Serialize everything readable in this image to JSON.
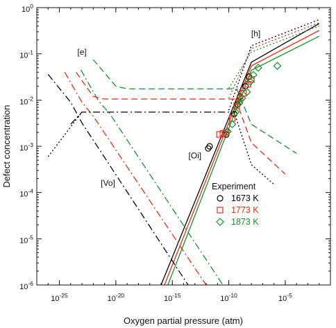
{
  "chart_data": {
    "type": "line",
    "xlabel": "Oxygen partial pressure (atm)",
    "ylabel": "Defect concentration",
    "x_scale": "log",
    "y_scale": "log",
    "xlim": [
      1e-27,
      0.1
    ],
    "ylim": [
      1e-06,
      1
    ],
    "x_ticks": [
      {
        "value": 1e-25,
        "base": "10",
        "exp": "-25"
      },
      {
        "value": 1e-20,
        "base": "10",
        "exp": "-20"
      },
      {
        "value": 1e-15,
        "base": "10",
        "exp": "-15"
      },
      {
        "value": 1e-10,
        "base": "10",
        "exp": "-10"
      },
      {
        "value": 1e-05,
        "base": "10",
        "exp": "-5"
      }
    ],
    "y_ticks": [
      {
        "value": 1e-06,
        "base": "10",
        "exp": "-6"
      },
      {
        "value": 1e-05,
        "base": "10",
        "exp": "-5"
      },
      {
        "value": 0.0001,
        "base": "10",
        "exp": "-4"
      },
      {
        "value": 0.001,
        "base": "10",
        "exp": "-3"
      },
      {
        "value": 0.01,
        "base": "10",
        "exp": "-2"
      },
      {
        "value": 0.1,
        "base": "10",
        "exp": "-1"
      },
      {
        "value": 1,
        "base": "10",
        "exp": "0"
      }
    ],
    "grid": false,
    "colors": {
      "1673": "#000000",
      "1773": "#ee2a10",
      "1873": "#15912a"
    },
    "annotations": [
      {
        "text": "[e]",
        "x": 1e-23,
        "y": 0.095
      },
      {
        "text": "[h]",
        "x": 2.5e-08,
        "y": 0.24
      },
      {
        "text": "[Vo]",
        "x": 2e-21,
        "y": 0.00014
      },
      {
        "text": "[Oi]",
        "x": 1e-13,
        "y": 0.00055
      }
    ],
    "series": [
      {
        "defect": "Oi",
        "T": "1673",
        "style": "solid",
        "x": [
          1e-16,
          1e-08,
          0.01
        ],
        "y": [
          1e-06,
          0.066,
          0.45
        ]
      },
      {
        "defect": "Oi",
        "T": "1773",
        "style": "solid",
        "x": [
          2e-16,
          1e-08,
          0.01
        ],
        "y": [
          1e-06,
          0.055,
          0.32
        ]
      },
      {
        "defect": "Oi",
        "T": "1873",
        "style": "solid",
        "x": [
          4e-16,
          1e-08,
          0.01
        ],
        "y": [
          1e-06,
          0.044,
          0.24
        ]
      },
      {
        "defect": "h",
        "T": "1673",
        "style": "dotted",
        "x": [
          1e-10,
          1e-08,
          0.01
        ],
        "y": [
          0.006,
          0.15,
          0.55
        ]
      },
      {
        "defect": "h",
        "T": "1773",
        "style": "dotted",
        "x": [
          1e-10,
          1e-08,
          0.01
        ],
        "y": [
          0.011,
          0.13,
          0.47
        ]
      },
      {
        "defect": "h",
        "T": "1873",
        "style": "dotted",
        "x": [
          1e-10,
          1e-08,
          0.01
        ],
        "y": [
          0.018,
          0.11,
          0.4
        ]
      },
      {
        "defect": "h",
        "T": "1673",
        "style": "dotted",
        "x": [
          1e-26,
          1e-23
        ],
        "y": [
          0.0006,
          0.0055
        ]
      },
      {
        "defect": "Vo",
        "T": "1673",
        "style": "dashdot",
        "x": [
          1e-26,
          1e-24,
          1e-23,
          2.5e-14
        ],
        "y": [
          0.036,
          0.009,
          0.0032,
          1e-06
        ]
      },
      {
        "defect": "Vo",
        "T": "1773",
        "style": "dashdot",
        "x": [
          3e-25,
          1e-23,
          1e-22,
          1e-12
        ],
        "y": [
          0.04,
          0.009,
          0.0045,
          1e-06
        ]
      },
      {
        "defect": "Vo",
        "T": "1873",
        "style": "dashdot",
        "x": [
          8e-24,
          3e-22,
          3e-21,
          3e-11
        ],
        "y": [
          0.045,
          0.0095,
          0.005,
          1e-06
        ]
      },
      {
        "defect": "e",
        "T": "1673",
        "style": "dashdot",
        "x": [
          1e-24,
          1e-23,
          3e-10
        ],
        "y": [
          0.003,
          0.0055,
          0.0055
        ]
      },
      {
        "defect": "e",
        "T": "1673",
        "style": "dotted",
        "x": [
          3e-10,
          1e-08,
          1e-06
        ],
        "y": [
          0.0055,
          0.0004,
          0.00015
        ]
      },
      {
        "defect": "e",
        "T": "1773",
        "style": "dashed",
        "x": [
          3e-24,
          1e-22,
          1e-21,
          4e-10
        ],
        "y": [
          0.04,
          0.012,
          0.0105,
          0.0105
        ]
      },
      {
        "defect": "e",
        "T": "1773",
        "style": "dashed",
        "x": [
          4e-10,
          1e-08,
          1e-05
        ],
        "y": [
          0.0105,
          0.0012,
          0.00025
        ]
      },
      {
        "defect": "e",
        "T": "1873",
        "style": "dashed",
        "x": [
          1e-22,
          1e-20,
          1e-19,
          5e-10
        ],
        "y": [
          0.075,
          0.02,
          0.0175,
          0.0175
        ]
      },
      {
        "defect": "e",
        "T": "1873",
        "style": "dashed",
        "x": [
          5e-10,
          1e-08,
          0.0001
        ],
        "y": [
          0.0175,
          0.003,
          0.0007
        ]
      }
    ],
    "experiment": [
      {
        "T": "1673",
        "marker": "circle",
        "points": [
          [
            1.5e-12,
            0.0009
          ],
          [
            2e-12,
            0.001
          ],
          [
            6e-11,
            0.0018
          ],
          [
            3e-10,
            0.005
          ],
          [
            6e-10,
            0.008
          ],
          [
            1e-09,
            0.012
          ],
          [
            3e-09,
            0.02
          ],
          [
            6e-09,
            0.032
          ]
        ]
      },
      {
        "T": "1773",
        "marker": "square",
        "points": [
          [
            1.5e-11,
            0.0018
          ],
          [
            3e-11,
            0.0019
          ],
          [
            6e-11,
            0.002
          ],
          [
            2e-10,
            0.004
          ],
          [
            5e-10,
            0.0075
          ],
          [
            1e-09,
            0.011
          ],
          [
            2e-09,
            0.014
          ],
          [
            5e-09,
            0.022
          ],
          [
            1e-08,
            0.028
          ]
        ]
      },
      {
        "T": "1873",
        "marker": "diamond",
        "points": [
          [
            8e-11,
            0.0021
          ],
          [
            2e-10,
            0.003
          ],
          [
            4e-10,
            0.0055
          ],
          [
            8e-10,
            0.0085
          ],
          [
            1.5e-09,
            0.011
          ],
          [
            4e-09,
            0.015
          ],
          [
            8e-09,
            0.025
          ],
          [
            1.5e-08,
            0.035
          ],
          [
            4e-08,
            0.05
          ],
          [
            2e-06,
            0.055
          ]
        ]
      }
    ],
    "legend": {
      "title": "Experiment",
      "placement": "bottom-right",
      "entries": [
        {
          "label": "1673 K",
          "T": "1673",
          "marker": "circle"
        },
        {
          "label": "1773 K",
          "T": "1773",
          "marker": "square"
        },
        {
          "label": "1873 K",
          "T": "1873",
          "marker": "diamond"
        }
      ]
    }
  }
}
